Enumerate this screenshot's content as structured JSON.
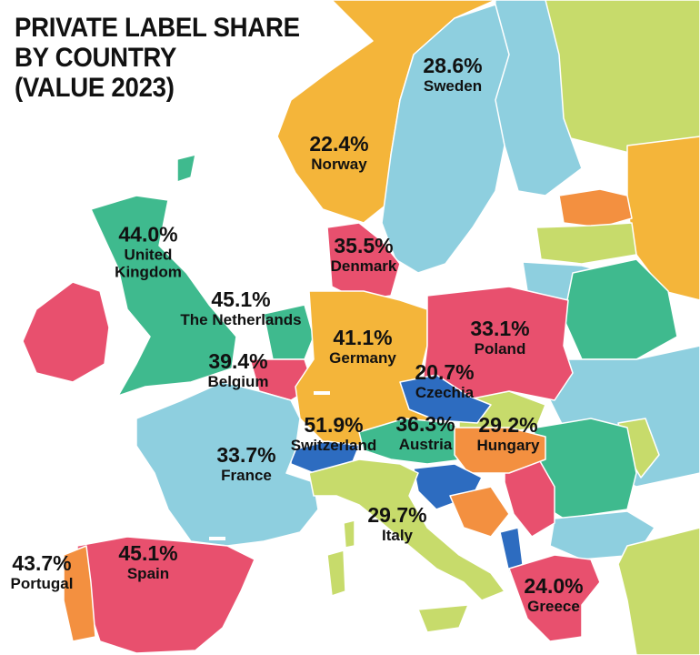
{
  "title": {
    "line1": "PRIVATE LABEL SHARE",
    "line2": "BY COUNTRY",
    "line3": "(VALUE 2023)"
  },
  "colors": {
    "sea": "#ffffff",
    "blue": "#8ecfdf",
    "yellow": "#f4b53a",
    "lime": "#c7db6b",
    "green": "#3fba8e",
    "pink": "#e8506e",
    "orange": "#f39040",
    "navy": "#2d6cc0",
    "water": "#7ab8d6"
  },
  "countries": [
    {
      "name": "Sweden",
      "value": "28.6%"
    },
    {
      "name": "Norway",
      "value": "22.4%"
    },
    {
      "name": "Denmark",
      "value": "35.5%"
    },
    {
      "name": "United Kingdom",
      "value": "44.0%"
    },
    {
      "name": "The Netherlands",
      "value": "45.1%"
    },
    {
      "name": "Belgium",
      "value": "39.4%"
    },
    {
      "name": "Germany",
      "value": "41.1%"
    },
    {
      "name": "Poland",
      "value": "33.1%"
    },
    {
      "name": "Czechia",
      "value": "20.7%"
    },
    {
      "name": "Switzerland",
      "value": "51.9%"
    },
    {
      "name": "Austria",
      "value": "36.3%"
    },
    {
      "name": "Hungary",
      "value": "29.2%"
    },
    {
      "name": "France",
      "value": "33.7%"
    },
    {
      "name": "Italy",
      "value": "29.7%"
    },
    {
      "name": "Spain",
      "value": "45.1%"
    },
    {
      "name": "Portugal",
      "value": "43.7%"
    },
    {
      "name": "Greece",
      "value": "24.0%"
    }
  ]
}
